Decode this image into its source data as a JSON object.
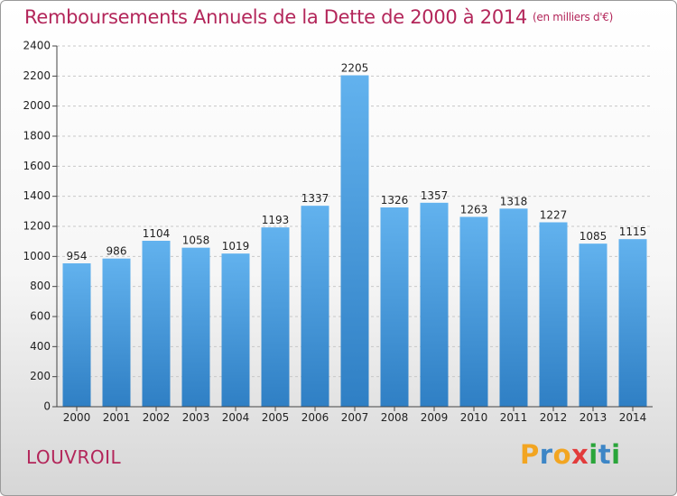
{
  "header": {
    "title": "Remboursements Annuels de la Dette de 2000 à 2014",
    "unit": "(en milliers d'€)"
  },
  "footer": {
    "place": "LOUVROIL",
    "logo": "Proxiti"
  },
  "colors": {
    "bar": "#4a9ee0",
    "bar_light": "#62b2ee",
    "bar_dark": "#2f7fc4",
    "title": "#b3265a"
  },
  "chart_data": {
    "type": "bar",
    "title": "Remboursements Annuels de la Dette de 2000 à 2014",
    "subtitle": "(en milliers d'€)",
    "xlabel": "",
    "ylabel": "",
    "categories": [
      "2000",
      "2001",
      "2002",
      "2003",
      "2004",
      "2005",
      "2006",
      "2007",
      "2008",
      "2009",
      "2010",
      "2011",
      "2012",
      "2013",
      "2014"
    ],
    "values": [
      954,
      986,
      1104,
      1058,
      1019,
      1193,
      1337,
      2205,
      1326,
      1357,
      1263,
      1318,
      1227,
      1085,
      1115
    ],
    "ylim": [
      0,
      2400
    ],
    "yticks": [
      0,
      200,
      400,
      600,
      800,
      1000,
      1200,
      1400,
      1600,
      1800,
      2000,
      2200,
      2400
    ],
    "grid": true,
    "legend": "none"
  }
}
